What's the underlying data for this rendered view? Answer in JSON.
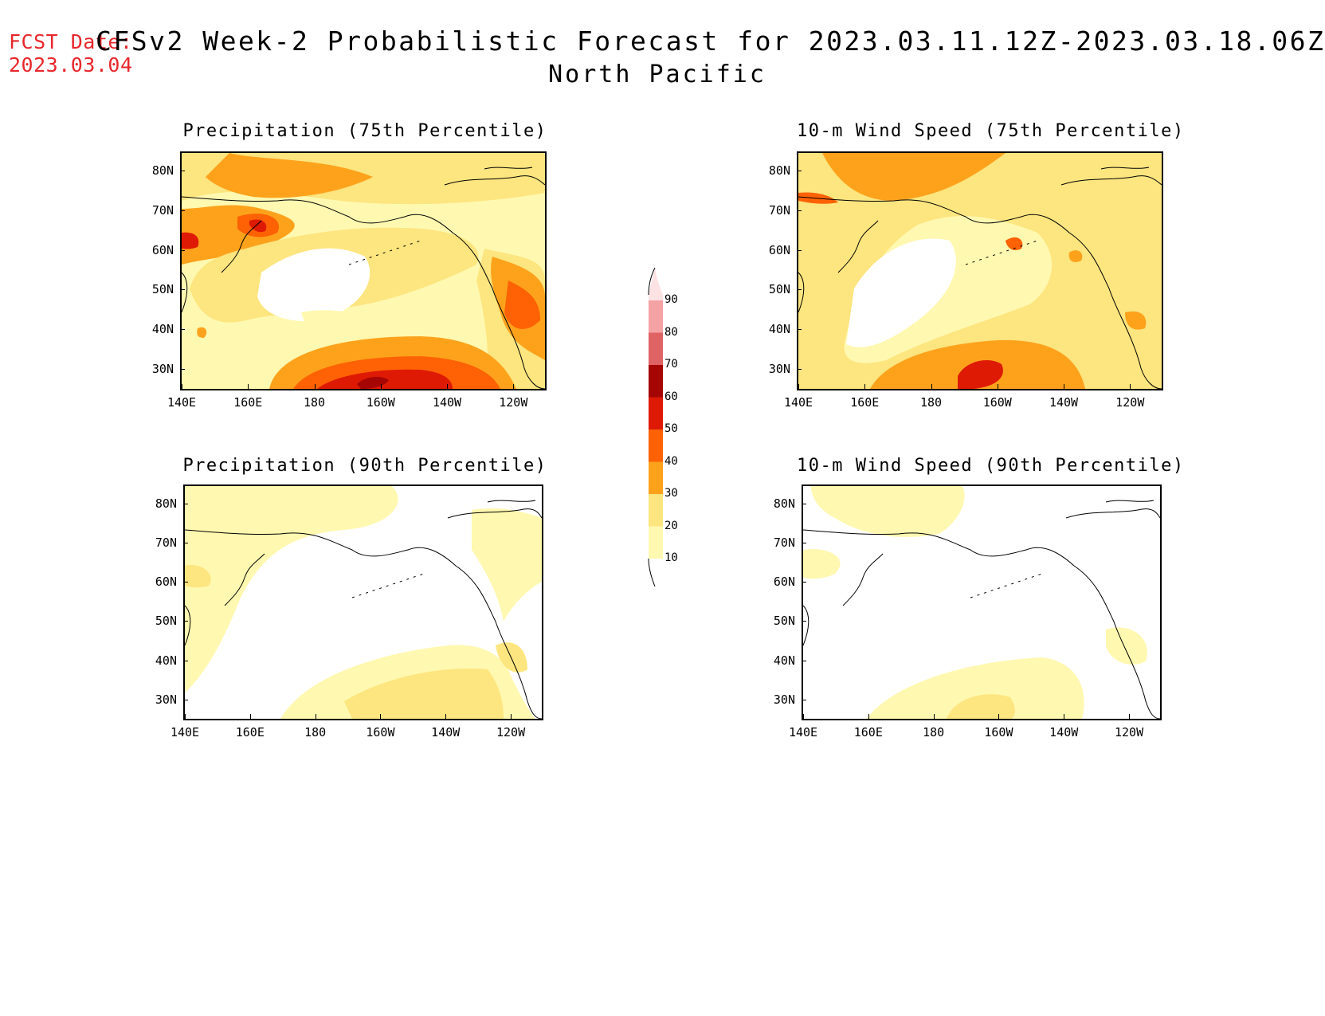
{
  "header": {
    "fcst_label": "FCST Date:",
    "fcst_date": "2023.03.04",
    "title": "CFSv2 Week-2 Probabilistic Forecast for 2023.03.11.12Z-2023.03.18.06Z",
    "subtitle": "North Pacific"
  },
  "colors": {
    "c10": "#fff8b0",
    "c20": "#fde57f",
    "c30": "#fea21c",
    "c40": "#fe6204",
    "c50": "#df1a04",
    "c60": "#a50604",
    "c70": "#df6264",
    "c80": "#f5a2a4",
    "c90": "#fde2e4",
    "coast": "#000000",
    "fcst_text": "#e8262b"
  },
  "axes": {
    "lat_ticks": [
      "80N",
      "70N",
      "60N",
      "50N",
      "40N",
      "30N"
    ],
    "lon_ticks": [
      "140E",
      "160E",
      "180",
      "160W",
      "140W",
      "120W"
    ]
  },
  "colorbar": {
    "levels": [
      "10",
      "20",
      "30",
      "40",
      "50",
      "60",
      "70",
      "80",
      "90"
    ]
  },
  "panels": [
    {
      "title": "Precipitation (75th Percentile)"
    },
    {
      "title": "10-m Wind Speed (75th Percentile)"
    },
    {
      "title": "Precipitation (90th Percentile)"
    },
    {
      "title": "10-m Wind Speed (90th Percentile)"
    }
  ]
}
